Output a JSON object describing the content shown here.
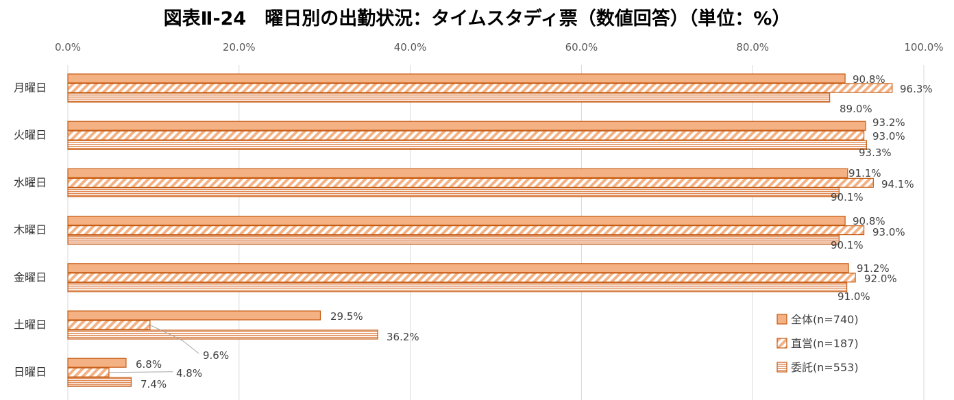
{
  "chart_data": {
    "type": "bar",
    "orientation": "horizontal",
    "title": "図表Ⅱ-24　曜日別の出勤状況：タイムスタディ票（数値回答）（単位：%）",
    "categories": [
      "月曜日",
      "火曜日",
      "水曜日",
      "木曜日",
      "金曜日",
      "土曜日",
      "日曜日"
    ],
    "series": [
      {
        "name": "全体(n=740)",
        "values": [
          90.8,
          93.2,
          91.1,
          90.8,
          91.2,
          29.5,
          6.8
        ],
        "labels": [
          "90.8%",
          "93.2%",
          "91.1%",
          "90.8%",
          "91.2%",
          "29.5%",
          "6.8%"
        ]
      },
      {
        "name": "直営(n=187)",
        "values": [
          96.3,
          93.0,
          94.1,
          93.0,
          92.0,
          9.6,
          4.8
        ],
        "labels": [
          "96.3%",
          "93.0%",
          "94.1%",
          "93.0%",
          "92.0%",
          "9.6%",
          "4.8%"
        ]
      },
      {
        "name": "委託(n=553)",
        "values": [
          89.0,
          93.3,
          90.1,
          90.1,
          91.0,
          36.2,
          7.4
        ],
        "labels": [
          "89.0%",
          "93.3%",
          "90.1%",
          "90.1%",
          "91.0%",
          "36.2%",
          "7.4%"
        ]
      }
    ],
    "xlim": [
      0,
      100
    ],
    "x_ticks": [
      "0.0%",
      "20.0%",
      "40.0%",
      "60.0%",
      "80.0%",
      "100.0%"
    ],
    "x_tick_values": [
      0,
      20,
      40,
      60,
      80,
      100
    ],
    "x_axis_position": "top",
    "grid": true,
    "legend_position": "bottom-right",
    "colors": {
      "fill": "#F4B183",
      "stroke": "#C55A11",
      "grid": "#D9D9D9"
    },
    "patterns": [
      "solid",
      "diagonal-stripes",
      "horizontal-stripes"
    ]
  }
}
